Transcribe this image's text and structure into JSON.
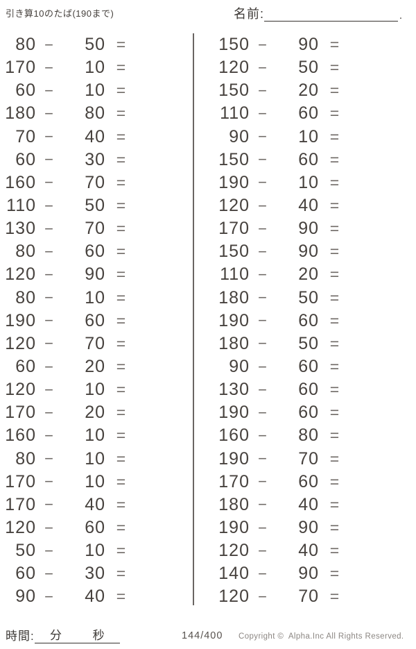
{
  "header": {
    "title": "引き算10のたば(190まで)",
    "name_label": "名前:",
    "name_suffix": "."
  },
  "problems": {
    "minus_sign": "−",
    "equals_sign": "=",
    "left_column": [
      {
        "a": "80",
        "b": "50"
      },
      {
        "a": "170",
        "b": "10"
      },
      {
        "a": "60",
        "b": "10"
      },
      {
        "a": "180",
        "b": "80"
      },
      {
        "a": "70",
        "b": "40"
      },
      {
        "a": "60",
        "b": "30"
      },
      {
        "a": "160",
        "b": "70"
      },
      {
        "a": "110",
        "b": "50"
      },
      {
        "a": "130",
        "b": "70"
      },
      {
        "a": "80",
        "b": "60"
      },
      {
        "a": "120",
        "b": "90"
      },
      {
        "a": "80",
        "b": "10"
      },
      {
        "a": "190",
        "b": "60"
      },
      {
        "a": "120",
        "b": "70"
      },
      {
        "a": "60",
        "b": "20"
      },
      {
        "a": "120",
        "b": "10"
      },
      {
        "a": "170",
        "b": "20"
      },
      {
        "a": "160",
        "b": "10"
      },
      {
        "a": "80",
        "b": "10"
      },
      {
        "a": "170",
        "b": "10"
      },
      {
        "a": "170",
        "b": "40"
      },
      {
        "a": "120",
        "b": "60"
      },
      {
        "a": "50",
        "b": "10"
      },
      {
        "a": "60",
        "b": "30"
      },
      {
        "a": "90",
        "b": "40"
      }
    ],
    "right_column": [
      {
        "a": "150",
        "b": "90"
      },
      {
        "a": "120",
        "b": "50"
      },
      {
        "a": "150",
        "b": "20"
      },
      {
        "a": "110",
        "b": "60"
      },
      {
        "a": "90",
        "b": "10"
      },
      {
        "a": "150",
        "b": "60"
      },
      {
        "a": "190",
        "b": "10"
      },
      {
        "a": "120",
        "b": "40"
      },
      {
        "a": "170",
        "b": "90"
      },
      {
        "a": "150",
        "b": "90"
      },
      {
        "a": "110",
        "b": "20"
      },
      {
        "a": "180",
        "b": "50"
      },
      {
        "a": "190",
        "b": "60"
      },
      {
        "a": "180",
        "b": "50"
      },
      {
        "a": "90",
        "b": "60"
      },
      {
        "a": "130",
        "b": "60"
      },
      {
        "a": "190",
        "b": "60"
      },
      {
        "a": "160",
        "b": "80"
      },
      {
        "a": "190",
        "b": "70"
      },
      {
        "a": "170",
        "b": "60"
      },
      {
        "a": "180",
        "b": "40"
      },
      {
        "a": "190",
        "b": "90"
      },
      {
        "a": "120",
        "b": "40"
      },
      {
        "a": "140",
        "b": "90"
      },
      {
        "a": "120",
        "b": "70"
      }
    ]
  },
  "footer": {
    "time_label": "時間:",
    "minutes_label": "分",
    "seconds_label": "秒",
    "page_number": "144/400",
    "copyright": "Copyright ©  Alpha.Inc All Rights Reserved."
  },
  "colors": {
    "ink": "#47423e",
    "operator": "#6f6a66",
    "muted": "#8b8682",
    "line": "#35312e",
    "background": "#ffffff"
  }
}
